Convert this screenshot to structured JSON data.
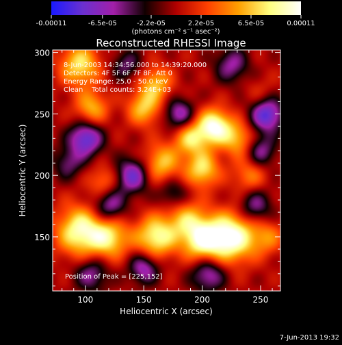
{
  "colorbar": {
    "tick_labels": [
      "-0.00011",
      "-6.5e-05",
      "-2.2e-05",
      "2.2e-05",
      "6.5e-05",
      "0.00011"
    ],
    "unit_label": "(photons cm⁻² s⁻¹ asec⁻²)",
    "stops": [
      "#1a1aff",
      "#6a30d0",
      "#a21fa8",
      "#100000",
      "#b00000",
      "#ff4000",
      "#ffa000",
      "#ffff80",
      "#ffffff"
    ]
  },
  "chart_data": {
    "type": "heatmap",
    "title": "Reconstructed RHESSI Image",
    "xlabel": "Heliocentric X (arcsec)",
    "ylabel": "Heliocentric Y (arcsec)",
    "xlim": [
      72,
      267
    ],
    "ylim": [
      106,
      302
    ],
    "x_ticks": [
      100,
      150,
      200,
      250
    ],
    "y_ticks": [
      150,
      200,
      250,
      300
    ],
    "x_tick_labels": [
      "100",
      "150",
      "200",
      "250"
    ],
    "y_tick_labels": [
      "150",
      "200",
      "250",
      "300"
    ],
    "info_lines": [
      "8-Jun-2003 14:34:56.000 to 14:39:20.000",
      "Detectors: 4F 5F 6F 7F 8F, Att 0",
      "Energy Range: 25.0 - 50.0 keV",
      "Clean    Total counts: 3.24E+03"
    ],
    "peak_label": "Position of Peak = [225,152]",
    "peak_position": [
      225,
      152
    ],
    "value_range": [
      -0.00011,
      0.00011
    ],
    "blobs": [
      {
        "x": 225,
        "y": 150,
        "v": 1.0,
        "s": 14
      },
      {
        "x": 200,
        "y": 148,
        "v": 0.85,
        "s": 12
      },
      {
        "x": 160,
        "y": 150,
        "v": 0.8,
        "s": 12
      },
      {
        "x": 95,
        "y": 155,
        "v": 0.85,
        "s": 14
      },
      {
        "x": 120,
        "y": 150,
        "v": 0.7,
        "s": 12
      },
      {
        "x": 185,
        "y": 165,
        "v": 0.5,
        "s": 12
      },
      {
        "x": 255,
        "y": 150,
        "v": 0.4,
        "s": 10
      },
      {
        "x": 210,
        "y": 240,
        "v": 0.95,
        "s": 10
      },
      {
        "x": 190,
        "y": 230,
        "v": 0.65,
        "s": 10
      },
      {
        "x": 230,
        "y": 230,
        "v": 0.55,
        "s": 10
      },
      {
        "x": 200,
        "y": 205,
        "v": 0.7,
        "s": 10
      },
      {
        "x": 165,
        "y": 210,
        "v": 0.6,
        "s": 11
      },
      {
        "x": 150,
        "y": 255,
        "v": 0.6,
        "s": 10
      },
      {
        "x": 160,
        "y": 275,
        "v": 0.55,
        "s": 10
      },
      {
        "x": 105,
        "y": 255,
        "v": 0.55,
        "s": 10
      },
      {
        "x": 95,
        "y": 290,
        "v": 0.7,
        "s": 12
      },
      {
        "x": 240,
        "y": 200,
        "v": 0.4,
        "s": 10
      },
      {
        "x": 115,
        "y": 195,
        "v": 0.4,
        "s": 9
      },
      {
        "x": 250,
        "y": 265,
        "v": 0.2,
        "s": 10
      },
      {
        "x": 100,
        "y": 230,
        "v": -0.8,
        "s": 10
      },
      {
        "x": 255,
        "y": 250,
        "v": -0.85,
        "s": 10
      },
      {
        "x": 180,
        "y": 250,
        "v": -0.6,
        "s": 9
      },
      {
        "x": 140,
        "y": 200,
        "v": -0.7,
        "s": 10
      },
      {
        "x": 120,
        "y": 175,
        "v": -0.6,
        "s": 10
      },
      {
        "x": 245,
        "y": 175,
        "v": -0.5,
        "s": 10
      },
      {
        "x": 205,
        "y": 120,
        "v": -0.6,
        "s": 10
      },
      {
        "x": 105,
        "y": 120,
        "v": -0.5,
        "s": 10
      },
      {
        "x": 150,
        "y": 125,
        "v": -0.6,
        "s": 9
      },
      {
        "x": 85,
        "y": 210,
        "v": -0.4,
        "s": 9
      },
      {
        "x": 225,
        "y": 290,
        "v": -0.5,
        "s": 10
      },
      {
        "x": 250,
        "y": 220,
        "v": -0.5,
        "s": 9
      },
      {
        "x": 135,
        "y": 290,
        "v": -0.4,
        "s": 9
      },
      {
        "x": 175,
        "y": 185,
        "v": -0.4,
        "s": 9
      }
    ]
  },
  "footer": {
    "timestamp": "7-Jun-2013 19:32"
  }
}
